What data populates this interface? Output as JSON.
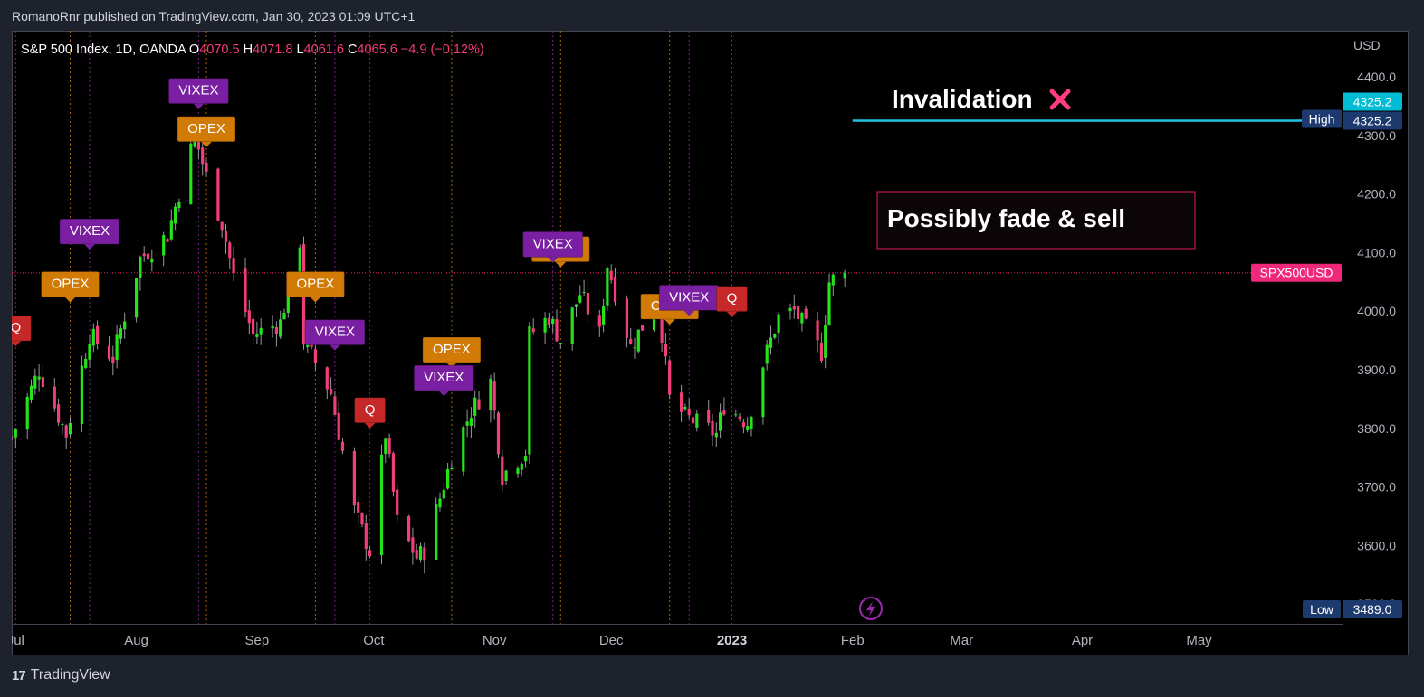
{
  "header": {
    "published": "RomanoRnr published on TradingView.com, Jan 30, 2023 01:09 UTC+1"
  },
  "legend": {
    "symbol": "S&P 500 Index, 1D, OANDA",
    "o_label": "O",
    "o": "4070.5",
    "h_label": "H",
    "h": "4071.8",
    "l_label": "L",
    "l": "4061.6",
    "c_label": "C",
    "c": "4065.6",
    "change": "−4.9 (−0.12%)"
  },
  "footer": {
    "brand": "TradingView"
  },
  "colors": {
    "up": "#26e21a",
    "down": "#f23d7a",
    "opex": "#d17a06",
    "vixex": "#7b1fa2",
    "q": "#c62828",
    "cyan": "#22c3e6",
    "pink": "#e91e63",
    "axis_text": "#b2b5be"
  },
  "chart_data": {
    "type": "candlestick",
    "symbol": "SPX500USD",
    "currency": "USD",
    "ylim": [
      3470,
      4430
    ],
    "y_ticks": [
      "4400.0",
      "4300.0",
      "4200.0",
      "4100.0",
      "4000.0",
      "3900.0",
      "3800.0",
      "3700.0",
      "3600.0",
      "3500.0"
    ],
    "x_ticks": [
      {
        "label": "Jul",
        "date": "2022-07-01"
      },
      {
        "label": "Aug",
        "date": "2022-08-01"
      },
      {
        "label": "Sep",
        "date": "2022-09-01"
      },
      {
        "label": "Oct",
        "date": "2022-10-01"
      },
      {
        "label": "Nov",
        "date": "2022-11-01"
      },
      {
        "label": "Dec",
        "date": "2022-12-01"
      },
      {
        "label": "2023",
        "date": "2023-01-01",
        "bold": true
      },
      {
        "label": "Feb",
        "date": "2023-02-01"
      },
      {
        "label": "Mar",
        "date": "2023-03-01"
      },
      {
        "label": "Apr",
        "date": "2023-04-01"
      },
      {
        "label": "May",
        "date": "2023-05-01"
      }
    ],
    "x_start": "2022-06-30",
    "close_path": [
      [
        "2022-06-30",
        3785
      ],
      [
        "2022-07-07",
        3900
      ],
      [
        "2022-07-14",
        3790
      ],
      [
        "2022-07-20",
        3960
      ],
      [
        "2022-07-26",
        3920
      ],
      [
        "2022-08-02",
        4090
      ],
      [
        "2022-08-09",
        4130
      ],
      [
        "2022-08-16",
        4300
      ],
      [
        "2022-08-19",
        4230
      ],
      [
        "2022-08-23",
        4150
      ],
      [
        "2022-08-26",
        4060
      ],
      [
        "2022-08-31",
        3960
      ],
      [
        "2022-09-07",
        3980
      ],
      [
        "2022-09-12",
        4120
      ],
      [
        "2022-09-13",
        3950
      ],
      [
        "2022-09-20",
        3860
      ],
      [
        "2022-09-26",
        3660
      ],
      [
        "2022-09-30",
        3590
      ],
      [
        "2022-10-04",
        3790
      ],
      [
        "2022-10-07",
        3640
      ],
      [
        "2022-10-12",
        3580
      ],
      [
        "2022-10-14",
        3590
      ],
      [
        "2022-10-21",
        3750
      ],
      [
        "2022-10-26",
        3830
      ],
      [
        "2022-10-31",
        3880
      ],
      [
        "2022-11-03",
        3720
      ],
      [
        "2022-11-09",
        3760
      ],
      [
        "2022-11-10",
        3960
      ],
      [
        "2022-11-15",
        3990
      ],
      [
        "2022-11-18",
        3950
      ],
      [
        "2022-11-23",
        4030
      ],
      [
        "2022-11-28",
        3960
      ],
      [
        "2022-11-30",
        4080
      ],
      [
        "2022-12-06",
        3940
      ],
      [
        "2022-12-13",
        4020
      ],
      [
        "2022-12-16",
        3850
      ],
      [
        "2022-12-20",
        3820
      ],
      [
        "2022-12-28",
        3790
      ],
      [
        "2022-12-30",
        3840
      ],
      [
        "2023-01-05",
        3810
      ],
      [
        "2023-01-09",
        3910
      ],
      [
        "2023-01-13",
        3990
      ],
      [
        "2023-01-17",
        4000
      ],
      [
        "2023-01-20",
        3970
      ],
      [
        "2023-01-24",
        3930
      ],
      [
        "2023-01-26",
        4050
      ],
      [
        "2023-01-30",
        4066
      ]
    ],
    "last_close": 4065.6,
    "high_line": {
      "label": "High",
      "value": 4325.2,
      "value_text": "4325.2"
    },
    "low_line": {
      "label": "Low",
      "value": 3489.0,
      "value_text": "3489.0"
    },
    "price_tag": {
      "label": "SPX500USD",
      "value": 4065.6
    },
    "cyan_tag": {
      "text": "4325.2",
      "value": 4325.2
    },
    "events": [
      {
        "type": "Q",
        "date": "2022-07-01",
        "price": 3940
      },
      {
        "type": "OPEX",
        "date": "2022-07-15",
        "price": 4015
      },
      {
        "type": "VIXEX",
        "date": "2022-07-20",
        "price": 4105
      },
      {
        "type": "VIXEX",
        "date": "2022-08-17",
        "price": 4345
      },
      {
        "type": "OPEX",
        "date": "2022-08-19",
        "price": 4280
      },
      {
        "type": "OPEX",
        "date": "2022-09-16",
        "price": 4015
      },
      {
        "type": "VIXEX",
        "date": "2022-09-21",
        "price": 3933
      },
      {
        "type": "Q",
        "date": "2022-09-30",
        "price": 3800
      },
      {
        "type": "OPEX",
        "date": "2022-10-21",
        "price": 3903
      },
      {
        "type": "VIXEX",
        "date": "2022-10-19",
        "price": 3855
      },
      {
        "type": "OPEX",
        "date": "2022-11-18",
        "price": 4075
      },
      {
        "type": "VIXEX",
        "date": "2022-11-16",
        "price": 4083
      },
      {
        "type": "OPEX",
        "date": "2022-12-16",
        "price": 3977
      },
      {
        "type": "VIXEX",
        "date": "2022-12-21",
        "price": 3992
      },
      {
        "type": "Q",
        "date": "2023-01-01",
        "price": 3990
      }
    ],
    "annotations": {
      "invalidation": {
        "text": "Invalidation",
        "line_value": 4325.2,
        "line_from": "2023-02-01"
      },
      "note": {
        "text": "Possibly fade & sell"
      }
    }
  }
}
